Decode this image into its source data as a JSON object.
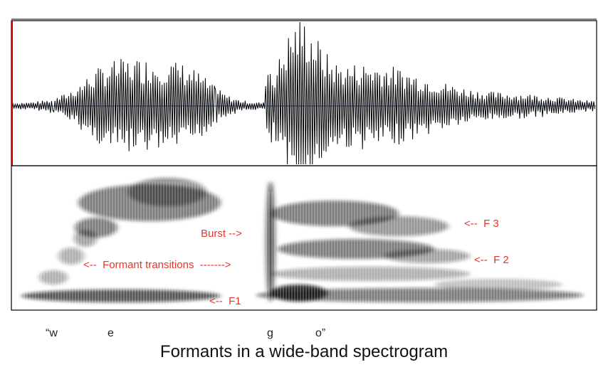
{
  "caption": "Formants in a wide-band spectrogram",
  "annotations": {
    "burst": "Burst -->",
    "formant_transitions": "<--  Formant transitions  ------->",
    "f1": "<--  F1",
    "f2": "<--  F 2",
    "f3": "<--  F 3"
  },
  "segments": [
    "“w",
    "e",
    "g",
    "o”"
  ],
  "colors": {
    "annotation": "#e8352a",
    "cursor": "#cc0000",
    "waveform": "#000000",
    "baseline": "#2a6fd6"
  }
}
